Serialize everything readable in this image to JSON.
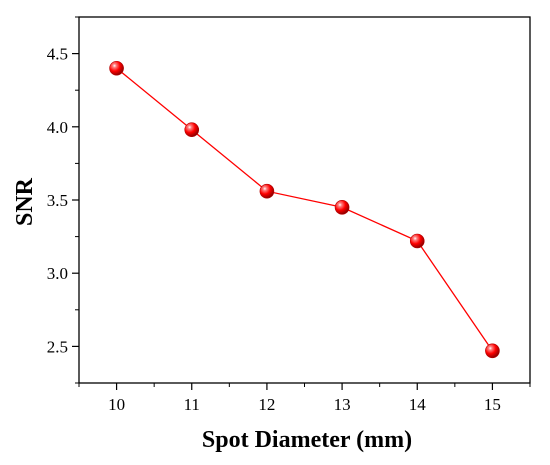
{
  "chart_data": {
    "type": "line",
    "title": "",
    "xlabel": "Spot Diameter (mm)",
    "ylabel": "SNR",
    "x": [
      10,
      11,
      12,
      13,
      14,
      15
    ],
    "series": [
      {
        "values": [
          4.4,
          3.98,
          3.56,
          3.45,
          3.22,
          2.47
        ],
        "color": "#ff0000"
      }
    ],
    "xlim": [
      9.5,
      15.5
    ],
    "ylim": [
      2.25,
      4.75
    ],
    "xticks": [
      "10",
      "11",
      "12",
      "13",
      "14",
      "15"
    ],
    "yticks": [
      "2.5",
      "3.0",
      "3.5",
      "4.0",
      "4.5"
    ],
    "marker": "sphere",
    "line_color": "#ff0000",
    "grid": false,
    "legend": "none"
  }
}
